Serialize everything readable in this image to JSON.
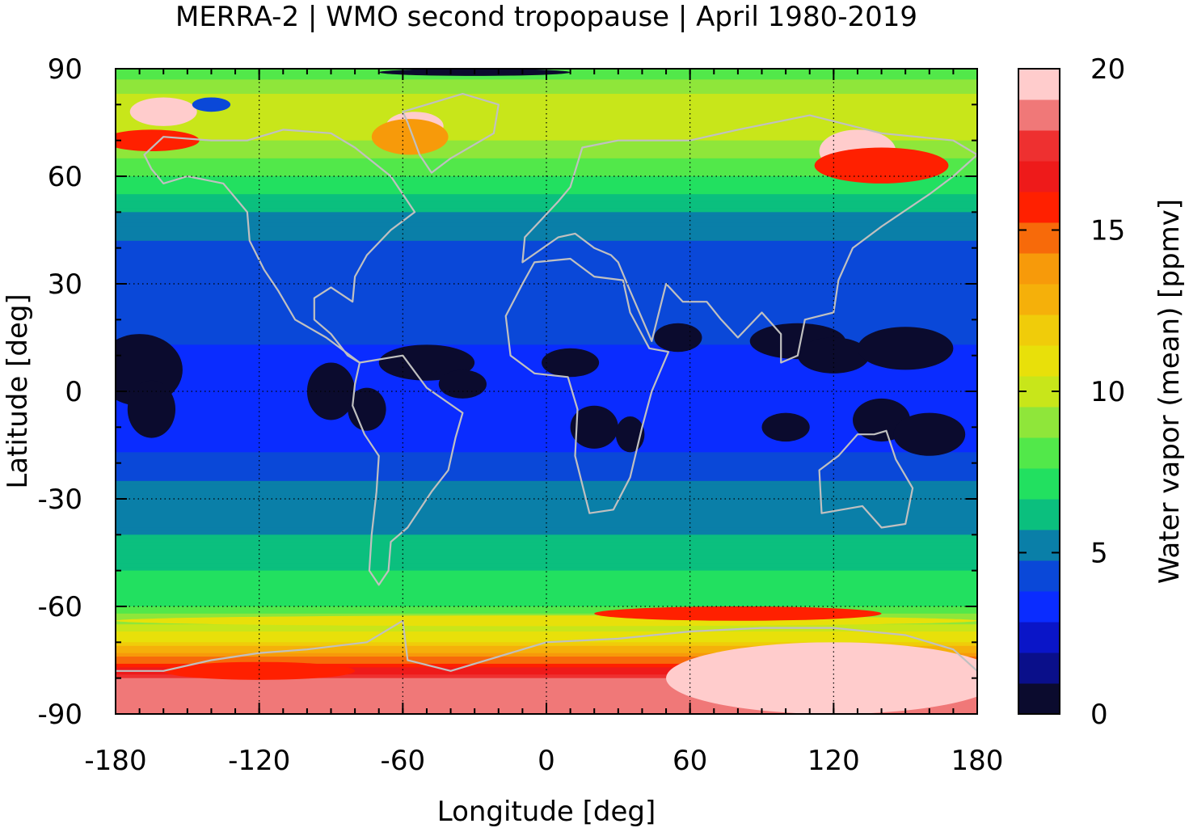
{
  "title": "MERRA-2 | WMO second tropopause | April 1980-2019",
  "chart_data": {
    "type": "heatmap",
    "title": "MERRA-2 | WMO second tropopause | April 1980-2019",
    "xlabel": "Longitude [deg]",
    "ylabel": "Latitude [deg]",
    "colorbar_label": "Water vapor (mean) [ppmv]",
    "xlim": [
      -180,
      180
    ],
    "ylim": [
      -90,
      90
    ],
    "xticks": [
      "-180",
      "-120",
      "-60",
      "0",
      "60",
      "120",
      "180"
    ],
    "yticks": [
      "90",
      "60",
      "30",
      "0",
      "-30",
      "-60",
      "-90"
    ],
    "clim": [
      0,
      20
    ],
    "colorbar_ticks": [
      "20",
      "15",
      "10",
      "5",
      "0"
    ],
    "grid": true,
    "colors": [
      "#0b0b2e",
      "#0a0f8a",
      "#0a15c8",
      "#0a2cff",
      "#0a48d8",
      "#0a7fa8",
      "#0bbf7e",
      "#22e060",
      "#52e84a",
      "#8fe63a",
      "#c8e61a",
      "#e8e00a",
      "#f0cc0a",
      "#f5b00a",
      "#f79a0a",
      "#f76a0a",
      "#ff2000",
      "#ee1a1a",
      "#ee3030",
      "#f07878",
      "#ffcccc"
    ],
    "zonal_profile_lat": [
      -90,
      -80,
      -70,
      -65,
      -60,
      -50,
      -40,
      -30,
      -20,
      -10,
      0,
      10,
      20,
      30,
      40,
      50,
      60,
      65,
      70,
      80,
      90
    ],
    "zonal_profile_ppmv": [
      20,
      19,
      12,
      10,
      8,
      7,
      6,
      5.5,
      4.5,
      3,
      3.2,
      3.8,
      4.5,
      4.6,
      4.7,
      6,
      8,
      9,
      10,
      11,
      8
    ]
  }
}
